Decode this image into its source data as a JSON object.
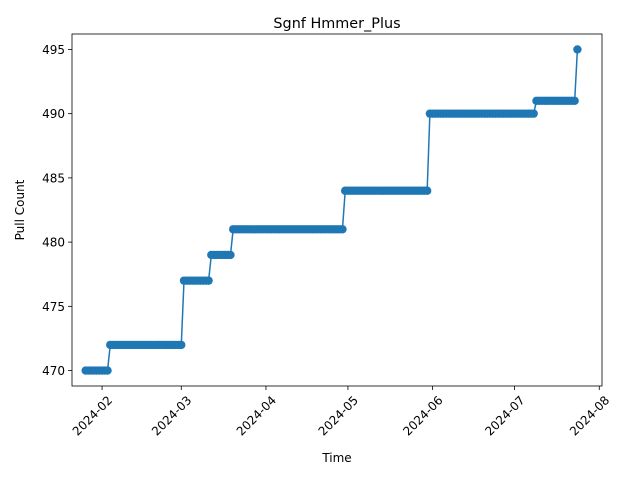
{
  "chart_data": {
    "type": "line",
    "title": "Sgnf Hmmer_Plus",
    "xlabel": "Time",
    "ylabel": "Pull Count",
    "grid": false,
    "legend": "none",
    "x_axis_kind": "date",
    "xlim": [
      "2024-01-21",
      "2024-08-02"
    ],
    "ylim": [
      468.8,
      496.2
    ],
    "x_ticks": [
      "2024-02",
      "2024-03",
      "2024-04",
      "2024-05",
      "2024-06",
      "2024-07",
      "2024-08"
    ],
    "y_ticks": [
      470,
      475,
      480,
      485,
      490,
      495
    ],
    "colors": {
      "series": "#1f77b4"
    },
    "series": [
      {
        "segments": [
          {
            "start": "2024-01-26",
            "end": "2024-02-03",
            "value": 470
          },
          {
            "start": "2024-02-04",
            "end": "2024-03-01",
            "value": 472
          },
          {
            "start": "2024-03-02",
            "end": "2024-03-11",
            "value": 477
          },
          {
            "start": "2024-03-12",
            "end": "2024-03-19",
            "value": 479
          },
          {
            "start": "2024-03-20",
            "end": "2024-04-29",
            "value": 481
          },
          {
            "start": "2024-04-30",
            "end": "2024-05-30",
            "value": 484
          },
          {
            "start": "2024-05-31",
            "end": "2024-07-08",
            "value": 490
          },
          {
            "start": "2024-07-09",
            "end": "2024-07-23",
            "value": 491
          },
          {
            "start": "2024-07-24",
            "end": "2024-07-24",
            "value": 495
          }
        ]
      }
    ]
  }
}
